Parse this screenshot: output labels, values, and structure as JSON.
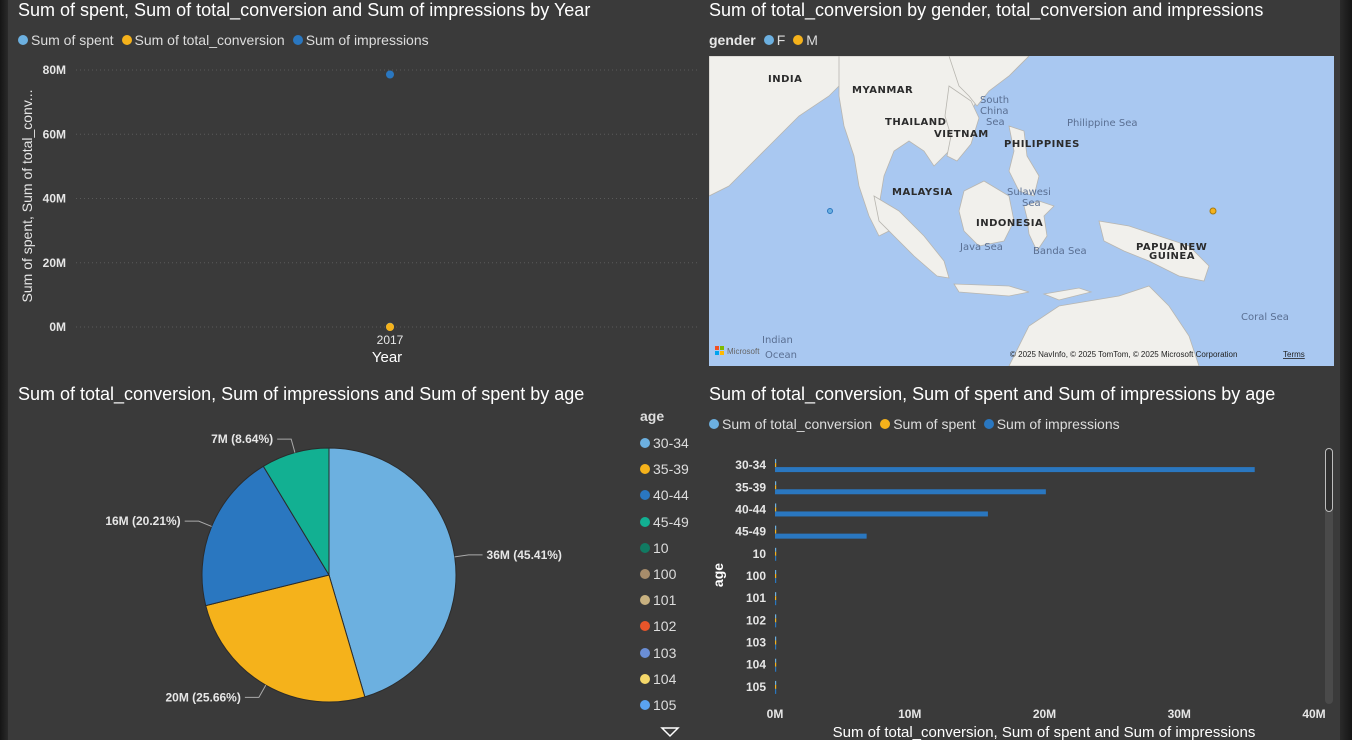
{
  "chart_data": [
    {
      "type": "scatter",
      "title": "Sum of spent, Sum of total_conversion and Sum of impressions by Year",
      "legend": [
        "Sum of spent",
        "Sum of total_conversion",
        "Sum of impressions"
      ],
      "legend_placement": "top-left",
      "xlabel": "Year",
      "ylabel": "Sum of spent, Sum of total_conv...",
      "categories": [
        "2017"
      ],
      "series": [
        {
          "name": "Sum of spent",
          "color": "#6cb0e0",
          "values": [
            58705
          ]
        },
        {
          "name": "Sum of total_conversion",
          "color": "#f5b21b",
          "values": [
            3264
          ]
        },
        {
          "name": "Sum of impressions",
          "color": "#2a77c0",
          "values": [
            78600000
          ]
        }
      ],
      "yticks": [
        "0M",
        "20M",
        "40M",
        "60M",
        "80M"
      ],
      "ylim": [
        0,
        80000000
      ],
      "grid": true
    },
    {
      "type": "map",
      "title": "Sum of total_conversion by gender, total_conversion and impressions",
      "legend_title": "gender",
      "legend": [
        {
          "name": "F",
          "color": "#6cb0e0"
        },
        {
          "name": "M",
          "color": "#f5b21b"
        }
      ],
      "place_labels": [
        "INDIA",
        "MYANMAR",
        "THAILAND",
        "VIETNAM",
        "PHILIPPINES",
        "MALAYSIA",
        "INDONESIA",
        "PAPUA NEW",
        "GUINEA"
      ],
      "sea_labels": [
        "South",
        "China",
        "Sea",
        "Philippine Sea",
        "Sulawesi",
        "Sea",
        "Java Sea",
        "Banda Sea",
        "Coral Sea",
        "Indian",
        "Ocean"
      ],
      "attribution": "© 2025 NavInfo, © 2025 TomTom, © 2025 Microsoft Corporation",
      "terms": "Terms",
      "brand": "Microsoft"
    },
    {
      "type": "pie",
      "title": "Sum of total_conversion, Sum of impressions and Sum of spent by age",
      "legend_title": "age",
      "legend": [
        {
          "name": "30-34",
          "color": "#6cb0e0"
        },
        {
          "name": "35-39",
          "color": "#f5b21b"
        },
        {
          "name": "40-44",
          "color": "#2a77c0"
        },
        {
          "name": "45-49",
          "color": "#12b092"
        },
        {
          "name": "10",
          "color": "#117a62"
        },
        {
          "name": "100",
          "color": "#a88d6b"
        },
        {
          "name": "101",
          "color": "#c8b180"
        },
        {
          "name": "102",
          "color": "#e8552a"
        },
        {
          "name": "103",
          "color": "#6a8ed6"
        },
        {
          "name": "104",
          "color": "#f5d86a"
        },
        {
          "name": "105",
          "color": "#5aa3f0"
        }
      ],
      "slices": [
        {
          "name": "30-34",
          "value": 45.41,
          "label": "36M (45.41%)",
          "color": "#6cb0e0"
        },
        {
          "name": "35-39",
          "value": 25.66,
          "label": "20M (25.66%)",
          "color": "#f5b21b"
        },
        {
          "name": "40-44",
          "value": 20.21,
          "label": "16M (20.21%)",
          "color": "#2a77c0"
        },
        {
          "name": "45-49",
          "value": 8.64,
          "label": "7M (8.64%)",
          "color": "#12b092"
        }
      ]
    },
    {
      "type": "bar",
      "orientation": "horizontal",
      "title": "Sum of total_conversion, Sum of spent and Sum of impressions by age",
      "legend": [
        "Sum of total_conversion",
        "Sum of spent",
        "Sum of impressions"
      ],
      "legend_placement": "top-left",
      "xlabel": "Sum of total_conversion, Sum of spent and Sum of impressions",
      "ylabel": "age",
      "categories": [
        "30-34",
        "35-39",
        "40-44",
        "45-49",
        "10",
        "100",
        "101",
        "102",
        "103",
        "104",
        "105"
      ],
      "series": [
        {
          "name": "Sum of total_conversion",
          "color": "#6cb0e0",
          "values": [
            1431,
            694,
            585,
            554,
            0,
            0,
            0,
            0,
            0,
            0,
            0
          ]
        },
        {
          "name": "Sum of spent",
          "color": "#f5b21b",
          "values": [
            15000,
            12000,
            13000,
            18000,
            0,
            0,
            0,
            0,
            0,
            0,
            0
          ]
        },
        {
          "name": "Sum of impressions",
          "color": "#2a77c0",
          "values": [
            35600000,
            20100000,
            15800000,
            6800000,
            0,
            0,
            0,
            0,
            0,
            0,
            0
          ]
        }
      ],
      "xticks": [
        "0M",
        "10M",
        "20M",
        "30M",
        "40M"
      ],
      "xlim": [
        0,
        40000000
      ],
      "grid": false
    }
  ]
}
